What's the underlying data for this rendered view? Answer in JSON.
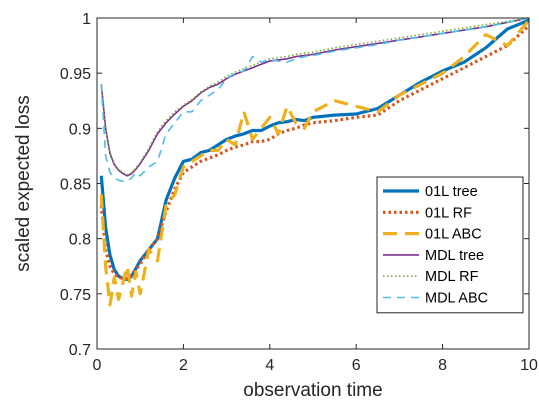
{
  "chart_data": {
    "type": "line",
    "title": "",
    "xlabel": "observation time",
    "ylabel": "scaled expected loss",
    "xlim": [
      0,
      10
    ],
    "ylim": [
      0.7,
      1
    ],
    "xticks": [
      "0",
      "2",
      "4",
      "6",
      "8",
      "10"
    ],
    "yticks": [
      "0.7",
      "0.75",
      "0.8",
      "0.85",
      "0.9",
      "0.95",
      "1"
    ],
    "grid": false,
    "legend_position": "bottom-right",
    "x": [
      0.1,
      0.2,
      0.3,
      0.4,
      0.5,
      0.6,
      0.7,
      0.8,
      0.9,
      1.0,
      1.2,
      1.4,
      1.6,
      1.8,
      2.0,
      2.2,
      2.4,
      2.6,
      2.8,
      3.0,
      3.2,
      3.4,
      3.6,
      3.8,
      4.0,
      4.2,
      4.4,
      4.6,
      4.8,
      5.0,
      5.5,
      6.0,
      6.5,
      7.0,
      7.5,
      8.0,
      8.5,
      9.0,
      9.5,
      10.0
    ],
    "series": [
      {
        "name": "01L tree",
        "color": "#0072BD",
        "dash": "solid",
        "width": 3.2,
        "values": [
          0.857,
          0.81,
          0.785,
          0.772,
          0.766,
          0.764,
          0.763,
          0.766,
          0.773,
          0.78,
          0.79,
          0.8,
          0.835,
          0.855,
          0.87,
          0.872,
          0.878,
          0.88,
          0.885,
          0.89,
          0.893,
          0.895,
          0.898,
          0.898,
          0.902,
          0.905,
          0.906,
          0.908,
          0.907,
          0.91,
          0.912,
          0.913,
          0.918,
          0.93,
          0.942,
          0.952,
          0.96,
          0.973,
          0.99,
          0.998
        ]
      },
      {
        "name": "01L RF",
        "color": "#D95319",
        "dash": "dotted",
        "width": 3.2,
        "values": [
          0.83,
          0.79,
          0.775,
          0.768,
          0.765,
          0.764,
          0.764,
          0.767,
          0.772,
          0.777,
          0.79,
          0.8,
          0.825,
          0.845,
          0.86,
          0.865,
          0.87,
          0.873,
          0.876,
          0.88,
          0.883,
          0.885,
          0.888,
          0.888,
          0.89,
          0.895,
          0.898,
          0.9,
          0.903,
          0.905,
          0.907,
          0.91,
          0.912,
          0.925,
          0.935,
          0.945,
          0.955,
          0.965,
          0.975,
          0.993
        ]
      },
      {
        "name": "01L ABC",
        "color": "#EDB120",
        "dash": "dashed",
        "width": 3.2,
        "values": [
          0.84,
          0.775,
          0.74,
          0.765,
          0.745,
          0.76,
          0.775,
          0.748,
          0.77,
          0.75,
          0.79,
          0.78,
          0.83,
          0.84,
          0.865,
          0.87,
          0.875,
          0.88,
          0.88,
          0.89,
          0.885,
          0.915,
          0.89,
          0.9,
          0.91,
          0.895,
          0.92,
          0.905,
          0.9,
          0.915,
          0.925,
          0.92,
          0.915,
          0.93,
          0.94,
          0.95,
          0.965,
          0.985,
          0.975,
          0.998
        ]
      },
      {
        "name": "MDL tree",
        "color": "#7E2F8E",
        "dash": "solid",
        "width": 1.6,
        "values": [
          0.94,
          0.9,
          0.877,
          0.867,
          0.862,
          0.859,
          0.857,
          0.859,
          0.863,
          0.868,
          0.88,
          0.895,
          0.905,
          0.913,
          0.92,
          0.925,
          0.932,
          0.937,
          0.94,
          0.945,
          0.949,
          0.952,
          0.955,
          0.958,
          0.961,
          0.962,
          0.963,
          0.965,
          0.966,
          0.967,
          0.971,
          0.974,
          0.977,
          0.98,
          0.983,
          0.986,
          0.989,
          0.992,
          0.996,
          1.0
        ]
      },
      {
        "name": "MDL RF",
        "color": "#77AC30",
        "dash": "dotted",
        "width": 1.6,
        "values": [
          0.938,
          0.9,
          0.878,
          0.868,
          0.863,
          0.86,
          0.858,
          0.86,
          0.864,
          0.869,
          0.882,
          0.897,
          0.907,
          0.915,
          0.921,
          0.926,
          0.933,
          0.938,
          0.942,
          0.947,
          0.951,
          0.954,
          0.957,
          0.96,
          0.963,
          0.964,
          0.965,
          0.967,
          0.968,
          0.969,
          0.973,
          0.976,
          0.979,
          0.982,
          0.985,
          0.988,
          0.991,
          0.994,
          0.997,
          1.0
        ]
      },
      {
        "name": "MDL ABC",
        "color": "#4DBEEE",
        "dash": "dashed",
        "width": 1.6,
        "values": [
          0.94,
          0.875,
          0.86,
          0.855,
          0.853,
          0.852,
          0.852,
          0.855,
          0.86,
          0.857,
          0.865,
          0.87,
          0.895,
          0.905,
          0.915,
          0.915,
          0.925,
          0.93,
          0.935,
          0.945,
          0.95,
          0.952,
          0.965,
          0.96,
          0.962,
          0.961,
          0.96,
          0.963,
          0.965,
          0.966,
          0.97,
          0.973,
          0.976,
          0.98,
          0.983,
          0.986,
          0.989,
          0.992,
          0.996,
          1.0
        ]
      }
    ]
  }
}
